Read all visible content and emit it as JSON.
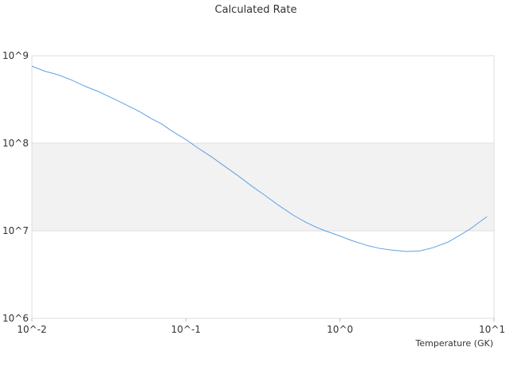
{
  "chart_data": {
    "type": "line",
    "title": "Calculated Rate",
    "xlabel": "Temperature (GK)",
    "ylabel": "",
    "x_scale": "log",
    "y_scale": "log",
    "xlim": [
      0.01,
      10
    ],
    "ylim": [
      1000000,
      1000000000
    ],
    "x_ticks": [
      {
        "value": 0.01,
        "label": "10^-2"
      },
      {
        "value": 0.1,
        "label": "10^-1"
      },
      {
        "value": 1,
        "label": "10^0"
      },
      {
        "value": 10,
        "label": "10^1"
      }
    ],
    "y_ticks": [
      {
        "value": 1000000,
        "label": "10^6"
      },
      {
        "value": 10000000,
        "label": "10^7"
      },
      {
        "value": 100000000,
        "label": "10^8"
      },
      {
        "value": 1000000000,
        "label": "10^9"
      }
    ],
    "grid": true,
    "shaded_band": [
      10000000,
      100000000
    ],
    "colors": {
      "line": "#5ea1e3",
      "band": "#f2f2f2",
      "grid": "#dddddd"
    },
    "series": [
      {
        "x": [
          0.01,
          0.012,
          0.015,
          0.018,
          0.022,
          0.027,
          0.033,
          0.04,
          0.05,
          0.06,
          0.07,
          0.08,
          0.1,
          0.12,
          0.15,
          0.18,
          0.22,
          0.27,
          0.33,
          0.4,
          0.5,
          0.6,
          0.7,
          0.8,
          1.0,
          1.2,
          1.5,
          1.8,
          2.2,
          2.7,
          3.3,
          4.0,
          5.0,
          6.0,
          7.0,
          8.0,
          9.0
        ],
        "y": [
          760000000,
          670000000,
          600000000,
          530000000,
          450000000,
          390000000,
          330000000,
          280000000,
          230000000,
          190000000,
          165000000,
          140000000,
          110000000,
          88000000,
          68000000,
          54000000,
          42000000,
          32000000,
          25000000,
          19500000,
          15000000,
          12500000,
          11000000,
          10000000,
          8700000,
          7700000,
          6800000,
          6300000,
          6000000,
          5800000,
          5900000,
          6400000,
          7400000,
          8900000,
          10500000,
          12500000,
          14500000
        ]
      }
    ]
  }
}
